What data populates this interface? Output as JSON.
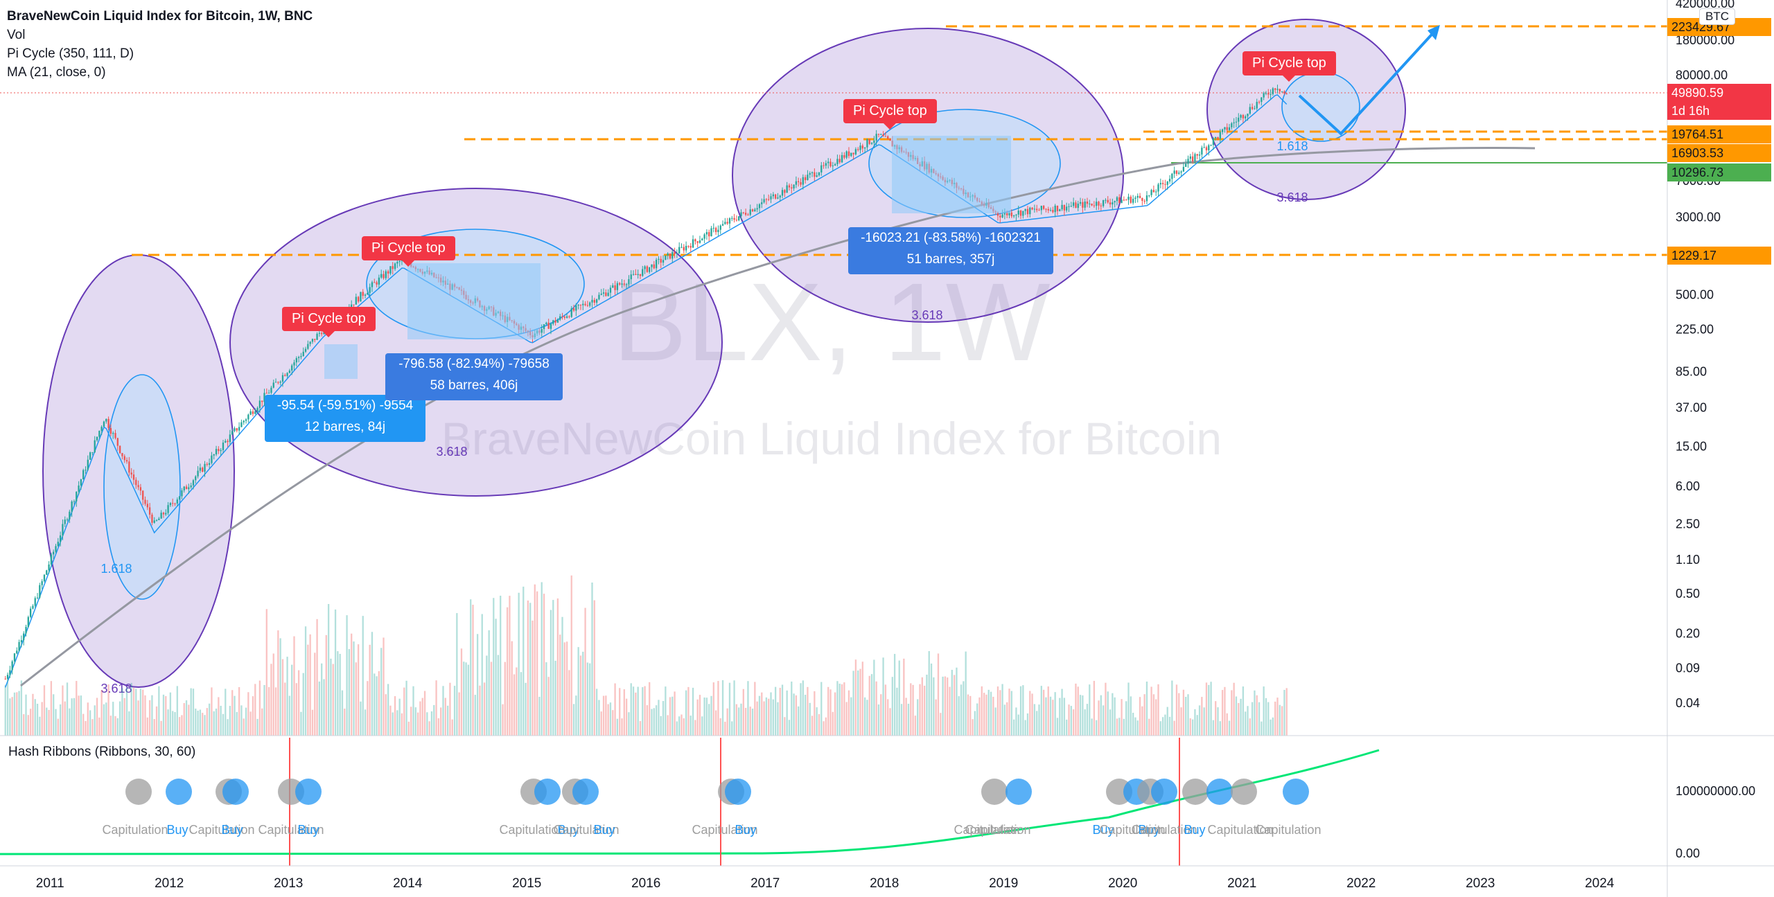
{
  "legend": {
    "title": "BraveNewCoin Liquid Index for Bitcoin, 1W, BNC",
    "vol": "Vol",
    "pi_cycle": "Pi Cycle (350, 111, D)",
    "ma": "MA (21, close, 0)"
  },
  "watermark": {
    "ticker": "BLX, 1W",
    "name": "BraveNewCoin Liquid Index for Bitcoin"
  },
  "currency_badge": "BTC",
  "price_axis": {
    "ticks": [
      "420000.00",
      "180000.00",
      "80000.00",
      "7000.00",
      "3000.00",
      "500.00",
      "225.00",
      "85.00",
      "37.00",
      "15.00",
      "6.00",
      "2.50",
      "1.10",
      "0.50",
      "0.20",
      "0.09",
      "0.04"
    ]
  },
  "price_tags": [
    {
      "id": "level-1",
      "text": "223429.67",
      "bg": "#ff9800",
      "fg": "#131722"
    },
    {
      "id": "current",
      "text": "49890.59",
      "bg": "#f23645",
      "fg": "#ffffff",
      "sub": "1d 16h"
    },
    {
      "id": "level-2",
      "text": "19764.51",
      "bg": "#ff9800",
      "fg": "#131722"
    },
    {
      "id": "level-3",
      "text": "16903.53",
      "bg": "#ff9800",
      "fg": "#131722"
    },
    {
      "id": "ma",
      "text": "10296.73",
      "bg": "#4caf50",
      "fg": "#131722"
    },
    {
      "id": "level-4",
      "text": "1229.17",
      "bg": "#ff9800",
      "fg": "#131722"
    }
  ],
  "time_axis": {
    "labels": [
      "2011",
      "2012",
      "2013",
      "2014",
      "2015",
      "2016",
      "2017",
      "2018",
      "2019",
      "2020",
      "2021",
      "2022",
      "2023",
      "2024"
    ]
  },
  "annotations": {
    "pi_cycle_tops": [
      "Pi Cycle top",
      "Pi Cycle top",
      "Pi Cycle top",
      "Pi Cycle top"
    ],
    "fib_labels": [
      "1.618",
      "3.618",
      "3.618",
      "3.618",
      "1.618",
      "3.618"
    ],
    "measures": [
      {
        "line1": "-95.54 (-59.51%) -9554",
        "line2": "12 barres, 84j",
        "color": "#2196f3"
      },
      {
        "line1": "-796.58 (-82.94%) -79658",
        "line2": "58 barres, 406j",
        "color": "#3a7be0"
      },
      {
        "line1": "-16023.21 (-83.58%) -1602321",
        "line2": "51 barres, 357j",
        "color": "#3a7be0"
      }
    ]
  },
  "hash_ribbons": {
    "title": "Hash Ribbons (Ribbons, 30, 60)",
    "axis_ticks": [
      "100000000.00",
      "0.00"
    ],
    "signal_labels": [
      {
        "text": "Capitulation",
        "color": "#9e9e9e"
      },
      {
        "text": "Buy",
        "color": "#2196f3"
      },
      {
        "text": "Capitulation",
        "color": "#9e9e9e"
      },
      {
        "text": "Buy",
        "color": "#2196f3"
      },
      {
        "text": "Capitulation",
        "color": "#9e9e9e"
      },
      {
        "text": "Buy",
        "color": "#2196f3"
      },
      {
        "text": "Capitulation",
        "color": "#9e9e9e"
      },
      {
        "text": "Buy",
        "color": "#2196f3"
      },
      {
        "text": "Capitulation",
        "color": "#9e9e9e"
      },
      {
        "text": "Buy",
        "color": "#2196f3"
      },
      {
        "text": "Capitulation",
        "color": "#9e9e9e"
      },
      {
        "text": "Buy",
        "color": "#2196f3"
      },
      {
        "text": "Capitulation",
        "color": "#9e9e9e"
      },
      {
        "text": "Capitulation",
        "color": "#9e9e9e"
      },
      {
        "text": "Buy",
        "color": "#2196f3"
      },
      {
        "text": "Capitulation",
        "color": "#9e9e9e"
      },
      {
        "text": "Buy",
        "color": "#2196f3"
      },
      {
        "text": "Capitulation",
        "color": "#9e9e9e"
      },
      {
        "text": "Buy",
        "color": "#2196f3"
      },
      {
        "text": "Capitulation",
        "color": "#9e9e9e"
      },
      {
        "text": "Capitulation",
        "color": "#9e9e9e"
      }
    ]
  },
  "colors": {
    "up": "#26a69a",
    "down": "#ef5350",
    "fib_fill": "#7e57c2",
    "ellipse_inner": "#2196f3",
    "level_line": "#ff9800",
    "ma_line": "#9598a1",
    "bb_line": "#2196f3",
    "green": "#4caf50",
    "ribbon_green": "#00e676",
    "ribbon_red": "#ff5252",
    "ribbon_grey": "#9e9e9e"
  },
  "chart_data": {
    "type": "candlestick",
    "title": "BraveNewCoin Liquid Index for Bitcoin, 1W, BNC",
    "scale": "log",
    "x_range": [
      "2010-07",
      "2024-06"
    ],
    "y_range": [
      0.04,
      420000
    ],
    "series_summary": [
      {
        "date": "2010-08",
        "close": 0.07
      },
      {
        "date": "2011-06",
        "close": 30.0
      },
      {
        "date": "2011-11",
        "close": 2.5
      },
      {
        "date": "2013-04",
        "close": 230
      },
      {
        "date": "2013-12",
        "close": 1150
      },
      {
        "date": "2015-01",
        "close": 200
      },
      {
        "date": "2017-12",
        "close": 19764.51
      },
      {
        "date": "2018-12",
        "close": 3200
      },
      {
        "date": "2020-03",
        "close": 4800
      },
      {
        "date": "2021-04",
        "close": 63000
      },
      {
        "date": "2021-05",
        "close": 49890.59
      }
    ],
    "horizontal_levels": [
      223429.67,
      19764.51,
      16903.53,
      1229.17
    ],
    "ma_last": 10296.73,
    "last_price": 49890.59
  }
}
